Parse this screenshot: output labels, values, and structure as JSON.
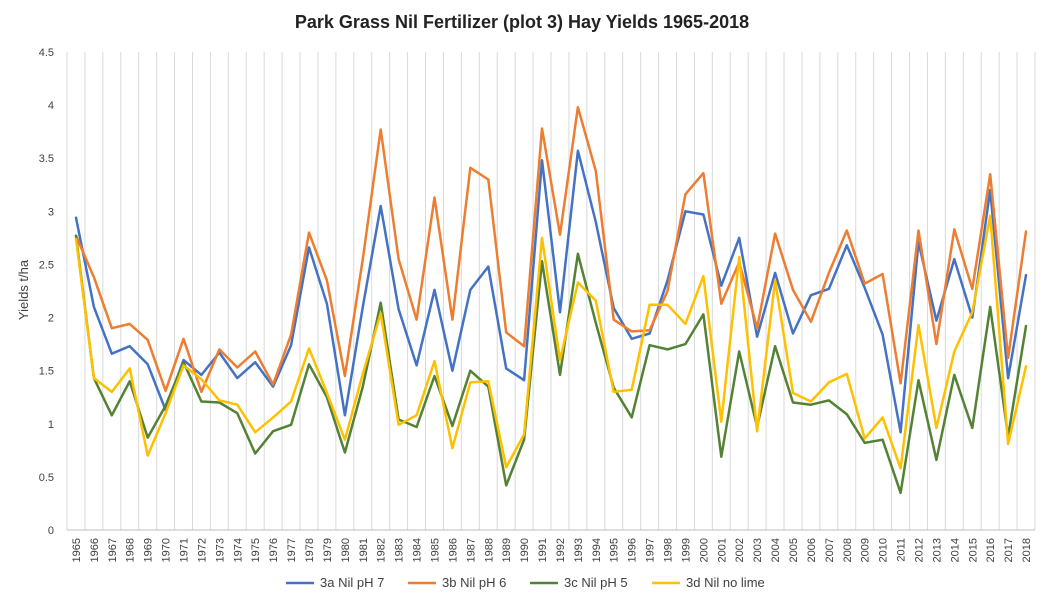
{
  "chart_data": {
    "type": "line",
    "title": "Park Grass Nil Fertilizer (plot 3) Hay Yields 1965-2018",
    "xlabel": "",
    "ylabel": "Yields t/ha",
    "ylim": [
      0,
      4.5
    ],
    "yticks": [
      "0",
      "0.5",
      "1",
      "1.5",
      "2",
      "2.5",
      "3",
      "3.5",
      "4",
      "4.5"
    ],
    "grid": "vertical",
    "legend_position": "bottom",
    "categories": [
      "1965",
      "1966",
      "1967",
      "1968",
      "1969",
      "1970",
      "1971",
      "1972",
      "1973",
      "1974",
      "1975",
      "1976",
      "1977",
      "1978",
      "1979",
      "1980",
      "1981",
      "1982",
      "1983",
      "1984",
      "1985",
      "1986",
      "1987",
      "1988",
      "1989",
      "1990",
      "1991",
      "1992",
      "1993",
      "1994",
      "1995",
      "1996",
      "1997",
      "1998",
      "1999",
      "2000",
      "2001",
      "2002",
      "2003",
      "2004",
      "2005",
      "2006",
      "2007",
      "2008",
      "2009",
      "2010",
      "2011",
      "2012",
      "2013",
      "2014",
      "2015",
      "2016",
      "2017",
      "2018"
    ],
    "series": [
      {
        "name": "3a Nil pH 7",
        "color": "#4472C4",
        "values": [
          2.94,
          2.1,
          1.66,
          1.73,
          1.56,
          1.13,
          1.6,
          1.46,
          1.67,
          1.43,
          1.58,
          1.35,
          1.74,
          2.66,
          2.13,
          1.08,
          2.1,
          3.05,
          2.08,
          1.55,
          2.26,
          1.5,
          2.26,
          2.48,
          1.52,
          1.41,
          3.48,
          2.05,
          3.57,
          2.9,
          2.09,
          1.8,
          1.85,
          2.35,
          3.0,
          2.97,
          2.3,
          2.75,
          1.82,
          2.42,
          1.85,
          2.21,
          2.27,
          2.68,
          2.28,
          1.84,
          0.92,
          2.71,
          1.97,
          2.55,
          2.0,
          3.2,
          1.43,
          2.4
        ]
      },
      {
        "name": "3b Nil pH 6",
        "color": "#ED7D31",
        "values": [
          2.77,
          2.38,
          1.9,
          1.94,
          1.79,
          1.31,
          1.8,
          1.3,
          1.7,
          1.53,
          1.68,
          1.37,
          1.84,
          2.8,
          2.35,
          1.45,
          2.55,
          3.77,
          2.55,
          1.98,
          3.13,
          1.98,
          3.41,
          3.3,
          1.86,
          1.73,
          3.78,
          2.78,
          3.98,
          3.38,
          1.98,
          1.87,
          1.88,
          2.25,
          3.16,
          3.36,
          2.13,
          2.52,
          1.9,
          2.79,
          2.26,
          1.96,
          2.42,
          2.82,
          2.32,
          2.41,
          1.38,
          2.82,
          1.75,
          2.83,
          2.27,
          3.35,
          1.62,
          2.81
        ]
      },
      {
        "name": "3c Nil pH 5",
        "color": "#548235",
        "values": [
          2.77,
          1.43,
          1.08,
          1.4,
          0.87,
          1.17,
          1.58,
          1.21,
          1.2,
          1.1,
          0.72,
          0.93,
          0.99,
          1.56,
          1.25,
          0.73,
          1.35,
          2.14,
          1.04,
          0.97,
          1.45,
          0.98,
          1.5,
          1.35,
          0.42,
          0.85,
          2.53,
          1.46,
          2.6,
          1.95,
          1.34,
          1.06,
          1.74,
          1.7,
          1.75,
          2.03,
          0.69,
          1.68,
          0.97,
          1.73,
          1.2,
          1.18,
          1.22,
          1.09,
          0.82,
          0.85,
          0.35,
          1.41,
          0.66,
          1.46,
          0.96,
          2.1,
          0.88,
          1.92
        ]
      },
      {
        "name": "3d Nil no lime",
        "color": "#FFC000",
        "values": [
          2.74,
          1.43,
          1.3,
          1.52,
          0.7,
          1.1,
          1.55,
          1.42,
          1.22,
          1.18,
          0.92,
          1.06,
          1.21,
          1.71,
          1.29,
          0.85,
          1.47,
          2.04,
          0.99,
          1.08,
          1.59,
          0.77,
          1.39,
          1.4,
          0.59,
          0.9,
          2.75,
          1.6,
          2.33,
          2.16,
          1.3,
          1.32,
          2.12,
          2.12,
          1.94,
          2.39,
          1.02,
          2.57,
          0.93,
          2.35,
          1.29,
          1.21,
          1.39,
          1.47,
          0.86,
          1.06,
          0.58,
          1.93,
          0.96,
          1.68,
          2.05,
          2.96,
          0.81,
          1.54
        ]
      }
    ]
  }
}
